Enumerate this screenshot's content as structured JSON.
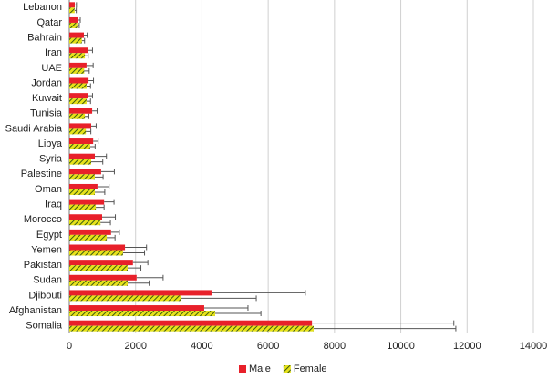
{
  "chart_data": {
    "type": "bar",
    "orientation": "horizontal",
    "categories": [
      "Lebanon",
      "Qatar",
      "Bahrain",
      "Iran",
      "UAE",
      "Jordan",
      "Kuwait",
      "Tunisia",
      "Saudi Arabia",
      "Libya",
      "Syria",
      "Palestine",
      "Oman",
      "Iraq",
      "Morocco",
      "Egypt",
      "Yemen",
      "Pakistan",
      "Sudan",
      "Djibouti",
      "Afghanistan",
      "Somalia"
    ],
    "series": [
      {
        "name": "Male",
        "color": "#e8202a",
        "values": [
          165,
          250,
          440,
          550,
          520,
          580,
          550,
          690,
          660,
          720,
          770,
          960,
          850,
          1050,
          990,
          1260,
          1680,
          1920,
          2030,
          4290,
          4070,
          7320
        ],
        "errors": [
          50,
          80,
          100,
          150,
          200,
          150,
          150,
          150,
          150,
          150,
          350,
          400,
          350,
          300,
          400,
          250,
          650,
          450,
          800,
          2830,
          1320,
          4280
        ]
      },
      {
        "name": "Female",
        "color": "#e6e21a",
        "values": [
          160,
          240,
          380,
          470,
          450,
          520,
          520,
          470,
          500,
          630,
          660,
          770,
          770,
          800,
          940,
          1130,
          1620,
          1760,
          1760,
          3360,
          4400,
          7370
        ],
        "errors": [
          50,
          60,
          80,
          100,
          150,
          120,
          120,
          120,
          150,
          150,
          350,
          250,
          300,
          250,
          300,
          250,
          650,
          400,
          650,
          2280,
          1380,
          4290
        ]
      }
    ],
    "xlim": [
      0,
      14000
    ],
    "xticks": [
      0,
      2000,
      4000,
      6000,
      8000,
      10000,
      12000,
      14000
    ],
    "grid": true,
    "legend": "bottom"
  }
}
